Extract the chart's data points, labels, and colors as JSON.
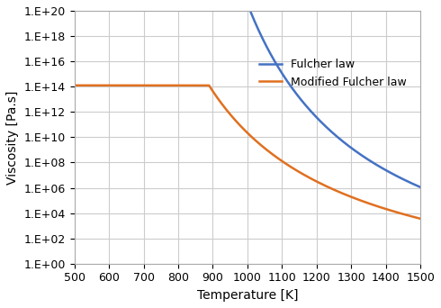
{
  "title": "",
  "xlabel": "Temperature [K]",
  "ylabel": "Viscosity [Pa.s]",
  "xlim": [
    500,
    1500
  ],
  "ylim_log_min": 0,
  "ylim_log_max": 20,
  "yticks_exp": [
    0,
    2,
    4,
    6,
    8,
    10,
    12,
    14,
    16,
    18,
    20
  ],
  "xticks": [
    500,
    600,
    700,
    800,
    900,
    1000,
    1100,
    1200,
    1300,
    1400,
    1500
  ],
  "fulcher_color": "#4472C4",
  "modified_color": "#E07020",
  "legend_fulcher": "Fulcher law",
  "legend_modified": "Modified Fulcher law",
  "fulcher_A": -4.0,
  "fulcher_B": 8500.0,
  "fulcher_T0": 654.0,
  "mod_A": -3.5,
  "mod_B": 7200.0,
  "mod_T0": 480.0,
  "mod_log_eta_max": 14.1,
  "background_color": "#ffffff",
  "grid_color": "#cccccc",
  "line_width": 1.8,
  "figsize": [
    4.9,
    3.42
  ],
  "dpi": 100
}
